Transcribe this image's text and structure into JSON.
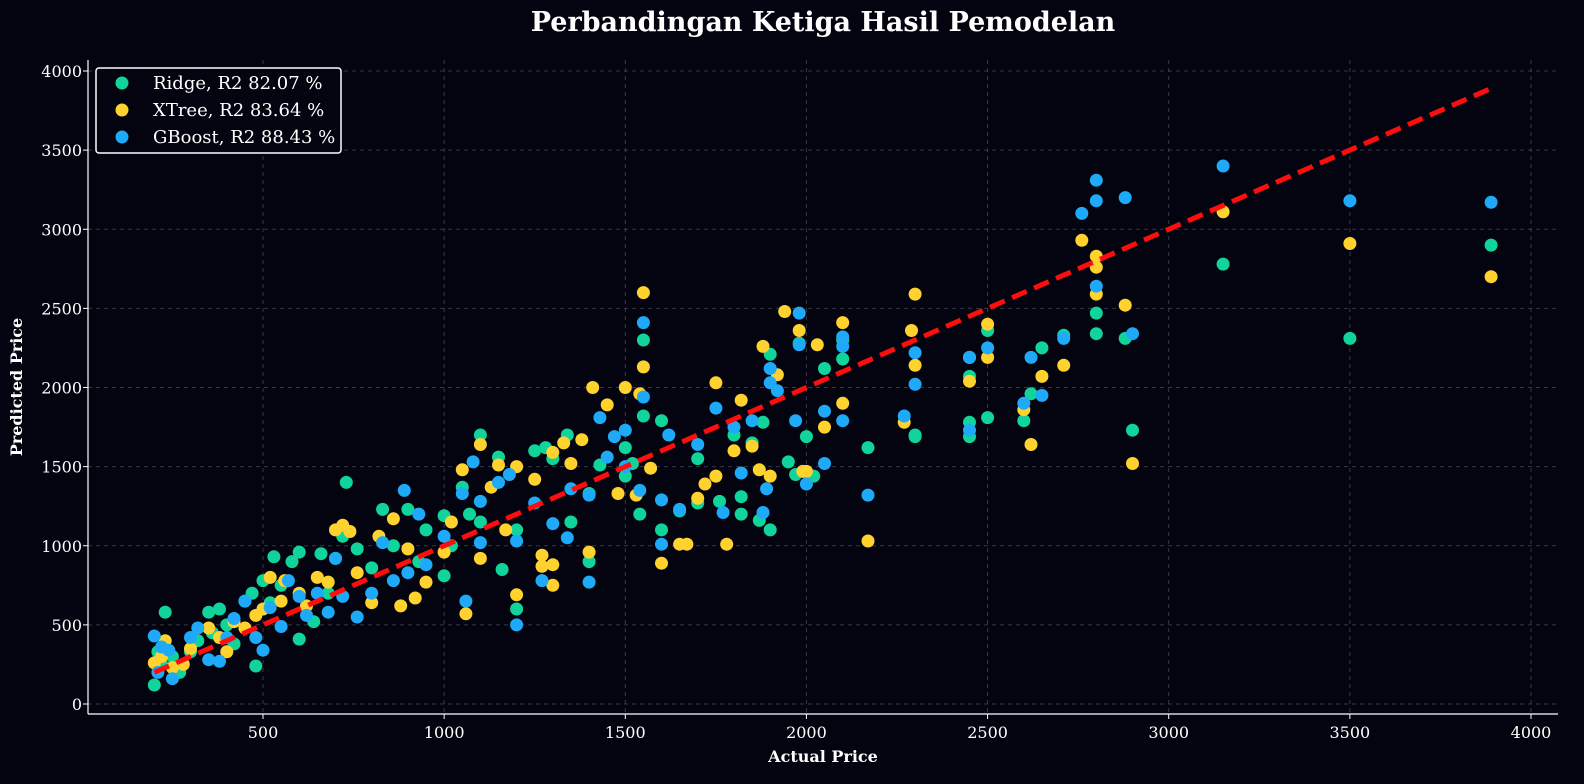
{
  "colors": {
    "background": "#03040f",
    "ridge": "#10d49a",
    "xtree": "#ffd22e",
    "gboost": "#1eaaf8",
    "diagonal": "#ff0d0d",
    "axis": "#ffffff",
    "grid": "#4a4f60"
  },
  "chart_data": {
    "type": "scatter",
    "title": "Perbandingan Ketiga Hasil Pemodelan",
    "xlabel": "Actual Price",
    "ylabel": "Predicted Price",
    "xlim": [
      0,
      4080
    ],
    "ylim": [
      -60,
      4080
    ],
    "xticks": [
      500,
      1000,
      1500,
      2000,
      2500,
      3000,
      3500,
      4000
    ],
    "yticks": [
      0,
      500,
      1000,
      1500,
      2000,
      2500,
      3000,
      3500,
      4000
    ],
    "grid": true,
    "legend_position": "top-left",
    "legend": [
      "Ridge, R2 82.07 %",
      "XTree, R2 83.64 %",
      "GBoost, R2 88.43 %"
    ],
    "reference_line": {
      "style": "dashed",
      "x": [
        200,
        3890
      ],
      "y": [
        200,
        3890
      ]
    },
    "series": [
      {
        "name": "Ridge, R2 82.07 %",
        "points": [
          [
            200,
            120
          ],
          [
            210,
            330
          ],
          [
            220,
            250
          ],
          [
            230,
            580
          ],
          [
            250,
            300
          ],
          [
            270,
            200
          ],
          [
            300,
            330
          ],
          [
            320,
            400
          ],
          [
            350,
            580
          ],
          [
            360,
            450
          ],
          [
            380,
            600
          ],
          [
            400,
            500
          ],
          [
            420,
            380
          ],
          [
            450,
            650
          ],
          [
            470,
            700
          ],
          [
            480,
            240
          ],
          [
            500,
            780
          ],
          [
            520,
            640
          ],
          [
            530,
            930
          ],
          [
            550,
            750
          ],
          [
            580,
            900
          ],
          [
            600,
            410
          ],
          [
            600,
            960
          ],
          [
            640,
            520
          ],
          [
            660,
            950
          ],
          [
            680,
            700
          ],
          [
            700,
            920
          ],
          [
            720,
            1060
          ],
          [
            730,
            1400
          ],
          [
            760,
            980
          ],
          [
            800,
            860
          ],
          [
            830,
            1230
          ],
          [
            860,
            1000
          ],
          [
            900,
            1230
          ],
          [
            930,
            900
          ],
          [
            950,
            1100
          ],
          [
            1000,
            1190
          ],
          [
            1000,
            810
          ],
          [
            1020,
            1000
          ],
          [
            1050,
            1370
          ],
          [
            1070,
            1200
          ],
          [
            1100,
            1700
          ],
          [
            1100,
            1150
          ],
          [
            1150,
            1560
          ],
          [
            1160,
            850
          ],
          [
            1200,
            600
          ],
          [
            1200,
            1100
          ],
          [
            1250,
            1600
          ],
          [
            1280,
            1620
          ],
          [
            1300,
            1550
          ],
          [
            1340,
            1700
          ],
          [
            1350,
            1150
          ],
          [
            1400,
            900
          ],
          [
            1400,
            1330
          ],
          [
            1430,
            1510
          ],
          [
            1500,
            1620
          ],
          [
            1500,
            1440
          ],
          [
            1520,
            1520
          ],
          [
            1540,
            1200
          ],
          [
            1550,
            2300
          ],
          [
            1550,
            1820
          ],
          [
            1600,
            1100
          ],
          [
            1600,
            1790
          ],
          [
            1650,
            1220
          ],
          [
            1700,
            1270
          ],
          [
            1700,
            1550
          ],
          [
            1760,
            1280
          ],
          [
            1800,
            1700
          ],
          [
            1820,
            1200
          ],
          [
            1820,
            1310
          ],
          [
            1850,
            1650
          ],
          [
            1870,
            1160
          ],
          [
            1880,
            1780
          ],
          [
            1900,
            1100
          ],
          [
            1900,
            2210
          ],
          [
            1950,
            1530
          ],
          [
            1970,
            1450
          ],
          [
            1980,
            2280
          ],
          [
            2000,
            1690
          ],
          [
            2020,
            1440
          ],
          [
            2050,
            2120
          ],
          [
            2100,
            2180
          ],
          [
            2100,
            2300
          ],
          [
            2170,
            1620
          ],
          [
            2300,
            1700
          ],
          [
            2300,
            1690
          ],
          [
            2450,
            1690
          ],
          [
            2450,
            1780
          ],
          [
            2450,
            2070
          ],
          [
            2500,
            1810
          ],
          [
            2500,
            2360
          ],
          [
            2600,
            1790
          ],
          [
            2620,
            1960
          ],
          [
            2650,
            2250
          ],
          [
            2710,
            2330
          ],
          [
            2800,
            2340
          ],
          [
            2800,
            2470
          ],
          [
            2880,
            2310
          ],
          [
            2900,
            1730
          ],
          [
            3150,
            2780
          ],
          [
            3500,
            2310
          ],
          [
            3890,
            2900
          ]
        ]
      },
      {
        "name": "XTree, R2 83.64 %",
        "points": [
          [
            200,
            260
          ],
          [
            220,
            300
          ],
          [
            230,
            400
          ],
          [
            250,
            230
          ],
          [
            280,
            250
          ],
          [
            300,
            350
          ],
          [
            350,
            480
          ],
          [
            380,
            420
          ],
          [
            400,
            330
          ],
          [
            420,
            520
          ],
          [
            450,
            480
          ],
          [
            480,
            560
          ],
          [
            500,
            600
          ],
          [
            520,
            800
          ],
          [
            550,
            650
          ],
          [
            560,
            780
          ],
          [
            600,
            700
          ],
          [
            620,
            620
          ],
          [
            650,
            800
          ],
          [
            680,
            770
          ],
          [
            700,
            1100
          ],
          [
            720,
            1130
          ],
          [
            740,
            1090
          ],
          [
            760,
            830
          ],
          [
            800,
            640
          ],
          [
            820,
            1060
          ],
          [
            860,
            1170
          ],
          [
            880,
            620
          ],
          [
            900,
            980
          ],
          [
            920,
            670
          ],
          [
            950,
            770
          ],
          [
            1000,
            960
          ],
          [
            1020,
            1150
          ],
          [
            1050,
            1480
          ],
          [
            1060,
            570
          ],
          [
            1100,
            920
          ],
          [
            1100,
            1640
          ],
          [
            1130,
            1370
          ],
          [
            1150,
            1510
          ],
          [
            1170,
            1100
          ],
          [
            1200,
            690
          ],
          [
            1200,
            1500
          ],
          [
            1250,
            1420
          ],
          [
            1270,
            940
          ],
          [
            1270,
            870
          ],
          [
            1300,
            750
          ],
          [
            1300,
            880
          ],
          [
            1300,
            1590
          ],
          [
            1330,
            1650
          ],
          [
            1350,
            1520
          ],
          [
            1380,
            1670
          ],
          [
            1400,
            960
          ],
          [
            1410,
            2000
          ],
          [
            1450,
            1890
          ],
          [
            1480,
            1330
          ],
          [
            1500,
            2000
          ],
          [
            1530,
            1320
          ],
          [
            1540,
            1960
          ],
          [
            1550,
            2600
          ],
          [
            1550,
            2130
          ],
          [
            1570,
            1490
          ],
          [
            1600,
            890
          ],
          [
            1650,
            1010
          ],
          [
            1670,
            1010
          ],
          [
            1700,
            1300
          ],
          [
            1720,
            1390
          ],
          [
            1750,
            2030
          ],
          [
            1750,
            1440
          ],
          [
            1780,
            1010
          ],
          [
            1800,
            1600
          ],
          [
            1820,
            1920
          ],
          [
            1850,
            1630
          ],
          [
            1870,
            1480
          ],
          [
            1880,
            2260
          ],
          [
            1900,
            1440
          ],
          [
            1920,
            2080
          ],
          [
            1940,
            2480
          ],
          [
            1980,
            2360
          ],
          [
            1990,
            1470
          ],
          [
            2000,
            1470
          ],
          [
            2030,
            2270
          ],
          [
            2050,
            1750
          ],
          [
            2100,
            1900
          ],
          [
            2100,
            2410
          ],
          [
            2170,
            1030
          ],
          [
            2270,
            1780
          ],
          [
            2290,
            2360
          ],
          [
            2300,
            2590
          ],
          [
            2300,
            2140
          ],
          [
            2450,
            2040
          ],
          [
            2450,
            2190
          ],
          [
            2500,
            2400
          ],
          [
            2500,
            2190
          ],
          [
            2600,
            1860
          ],
          [
            2620,
            1640
          ],
          [
            2650,
            2070
          ],
          [
            2710,
            2140
          ],
          [
            2760,
            2930
          ],
          [
            2800,
            2760
          ],
          [
            2800,
            2590
          ],
          [
            2800,
            2830
          ],
          [
            2880,
            2520
          ],
          [
            2900,
            1520
          ],
          [
            3150,
            3110
          ],
          [
            3500,
            2910
          ],
          [
            3890,
            2700
          ]
        ]
      },
      {
        "name": "GBoost, R2 88.43 %",
        "points": [
          [
            200,
            430
          ],
          [
            210,
            200
          ],
          [
            220,
            360
          ],
          [
            240,
            340
          ],
          [
            250,
            160
          ],
          [
            300,
            420
          ],
          [
            320,
            480
          ],
          [
            350,
            280
          ],
          [
            380,
            270
          ],
          [
            400,
            420
          ],
          [
            420,
            540
          ],
          [
            450,
            650
          ],
          [
            480,
            420
          ],
          [
            500,
            340
          ],
          [
            520,
            610
          ],
          [
            550,
            490
          ],
          [
            570,
            780
          ],
          [
            600,
            680
          ],
          [
            620,
            560
          ],
          [
            650,
            700
          ],
          [
            680,
            580
          ],
          [
            700,
            920
          ],
          [
            720,
            680
          ],
          [
            760,
            550
          ],
          [
            800,
            700
          ],
          [
            830,
            1020
          ],
          [
            860,
            780
          ],
          [
            890,
            1350
          ],
          [
            900,
            830
          ],
          [
            930,
            1200
          ],
          [
            950,
            880
          ],
          [
            1000,
            1060
          ],
          [
            1050,
            1330
          ],
          [
            1060,
            650
          ],
          [
            1080,
            1530
          ],
          [
            1100,
            1020
          ],
          [
            1100,
            1280
          ],
          [
            1150,
            1400
          ],
          [
            1180,
            1450
          ],
          [
            1200,
            500
          ],
          [
            1200,
            1030
          ],
          [
            1250,
            1270
          ],
          [
            1270,
            780
          ],
          [
            1300,
            1140
          ],
          [
            1340,
            1050
          ],
          [
            1350,
            1360
          ],
          [
            1400,
            770
          ],
          [
            1400,
            1320
          ],
          [
            1430,
            1810
          ],
          [
            1450,
            1560
          ],
          [
            1470,
            1690
          ],
          [
            1500,
            1730
          ],
          [
            1500,
            1500
          ],
          [
            1540,
            1350
          ],
          [
            1550,
            2410
          ],
          [
            1550,
            1940
          ],
          [
            1600,
            1010
          ],
          [
            1600,
            1290
          ],
          [
            1620,
            1700
          ],
          [
            1650,
            1230
          ],
          [
            1700,
            1640
          ],
          [
            1750,
            1870
          ],
          [
            1770,
            1210
          ],
          [
            1800,
            1750
          ],
          [
            1820,
            1460
          ],
          [
            1850,
            1790
          ],
          [
            1880,
            1210
          ],
          [
            1890,
            1360
          ],
          [
            1900,
            2030
          ],
          [
            1900,
            2120
          ],
          [
            1920,
            1980
          ],
          [
            1970,
            1790
          ],
          [
            1980,
            2470
          ],
          [
            1980,
            2270
          ],
          [
            2000,
            1390
          ],
          [
            2050,
            1850
          ],
          [
            2050,
            1520
          ],
          [
            2100,
            1790
          ],
          [
            2100,
            2260
          ],
          [
            2100,
            2320
          ],
          [
            2170,
            1320
          ],
          [
            2270,
            1820
          ],
          [
            2300,
            2220
          ],
          [
            2300,
            2020
          ],
          [
            2450,
            1730
          ],
          [
            2450,
            2190
          ],
          [
            2500,
            2250
          ],
          [
            2600,
            1900
          ],
          [
            2620,
            2190
          ],
          [
            2650,
            1950
          ],
          [
            2710,
            2310
          ],
          [
            2760,
            3100
          ],
          [
            2800,
            2640
          ],
          [
            2800,
            3180
          ],
          [
            2800,
            3310
          ],
          [
            2880,
            3200
          ],
          [
            2900,
            2340
          ],
          [
            3150,
            3400
          ],
          [
            3500,
            3180
          ],
          [
            3890,
            3170
          ]
        ]
      }
    ]
  }
}
